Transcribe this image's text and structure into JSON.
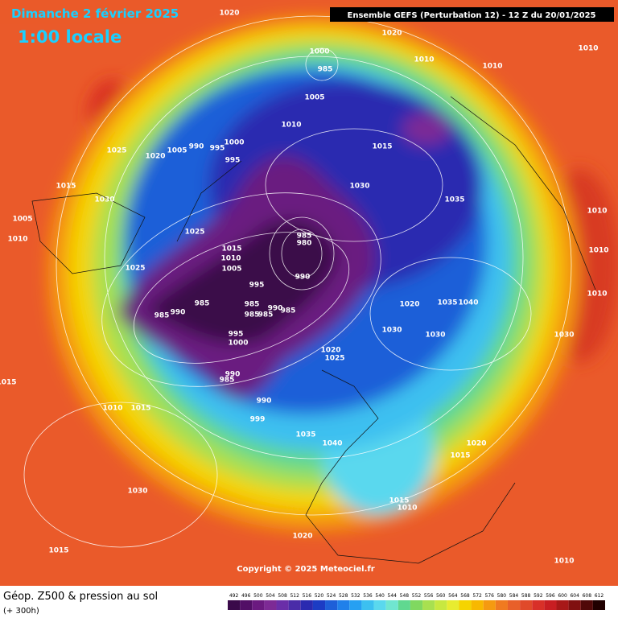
{
  "header": {
    "date": "Dimanche 2 février 2025",
    "time": "1:00 locale",
    "run": "Ensemble GEFS  (Perturbation 12)  -  12 Z du 20/01/2025"
  },
  "copyright": "Copyright © 2025 Meteociel.fr",
  "legend": {
    "title": "Géop. Z500 & pression au sol",
    "lead": "(+ 300h)",
    "ticks": [
      492,
      496,
      500,
      504,
      508,
      512,
      516,
      520,
      524,
      528,
      532,
      536,
      540,
      544,
      548,
      552,
      556,
      560,
      564,
      568,
      572,
      576,
      580,
      584,
      588,
      592,
      596,
      600,
      604,
      608,
      612
    ],
    "colors": [
      "#3a0a4a",
      "#520f66",
      "#6b1a80",
      "#7d2a95",
      "#6a2ea8",
      "#4a2ca8",
      "#2a2ab0",
      "#1c3cc4",
      "#1e5fd8",
      "#2080ea",
      "#26a0f2",
      "#3cc0f0",
      "#5ad8ee",
      "#70e6d0",
      "#60d890",
      "#80d860",
      "#a8e050",
      "#c8e840",
      "#e8ec30",
      "#f5d400",
      "#f8b800",
      "#f59a10",
      "#f07a20",
      "#e8602a",
      "#e04a2a",
      "#d83028",
      "#c81e22",
      "#a81818",
      "#801010",
      "#500808",
      "#200000"
    ]
  },
  "pressure_labels": [
    1020,
    1020,
    1010,
    1010,
    1010,
    1000,
    985,
    1005,
    1010,
    1015,
    1025,
    1020,
    1005,
    990,
    995,
    1000,
    995,
    1015,
    1030,
    1030,
    1035,
    1005,
    1010,
    1025,
    1015,
    1010,
    1005,
    985,
    980,
    990,
    1025,
    995,
    985,
    985,
    985,
    990,
    985,
    985,
    990,
    985,
    995,
    1000,
    1020,
    1035,
    1040,
    1010,
    1010,
    1010,
    1030,
    1030,
    1030,
    1020,
    1025,
    990,
    985,
    990,
    999,
    1015,
    1010,
    1015,
    1035,
    1040,
    1020,
    1015,
    1030,
    1015,
    1010,
    1020,
    1015,
    1010
  ]
}
